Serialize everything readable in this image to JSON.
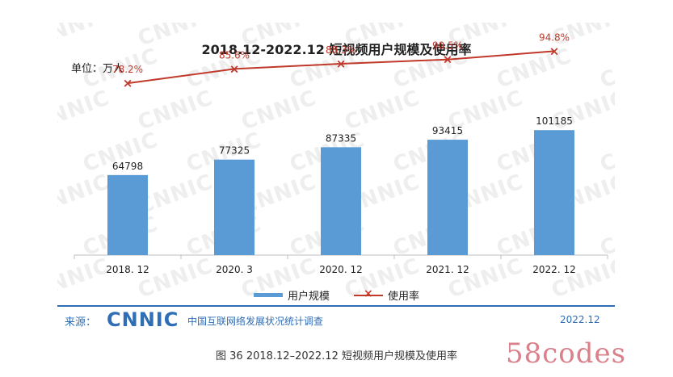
{
  "header": {
    "title": "2018.12-2022.12 短视频用户规模及使用率",
    "unit": "单位：万人"
  },
  "chart_data": {
    "type": "bar",
    "title": "2018.12-2022.12 短视频用户规模及使用率",
    "categories": [
      "2018. 12",
      "2020. 3",
      "2020. 12",
      "2021. 12",
      "2022. 12"
    ],
    "series": [
      {
        "name": "用户规模",
        "type": "bar",
        "values": [
          64798,
          77325,
          87335,
          93415,
          101185
        ],
        "color": "#5b9bd5"
      },
      {
        "name": "使用率",
        "type": "line",
        "values": [
          78.2,
          85.6,
          88.3,
          90.5,
          94.8
        ],
        "labels": [
          "78.2%",
          "85.6%",
          "88.3%",
          "90.5%",
          "94.8%"
        ],
        "color": "#c0392b"
      }
    ],
    "bar_ylim": [
      0,
      120000
    ],
    "line_ylim": [
      0,
      100
    ],
    "legend_position": "bottom",
    "grid": false
  },
  "legend": {
    "bar_label": "用户规模",
    "line_label": "使用率"
  },
  "footer": {
    "source_label": "来源：",
    "logo_text": "CNNIC",
    "org": "中国互联网络发展状况统计调查",
    "date": "2022.12"
  },
  "caption": "图 36  2018.12–2022.12 短视频用户规模及使用率",
  "watermark": {
    "logo_text": "CNNIC",
    "brand_text": "58codes"
  }
}
